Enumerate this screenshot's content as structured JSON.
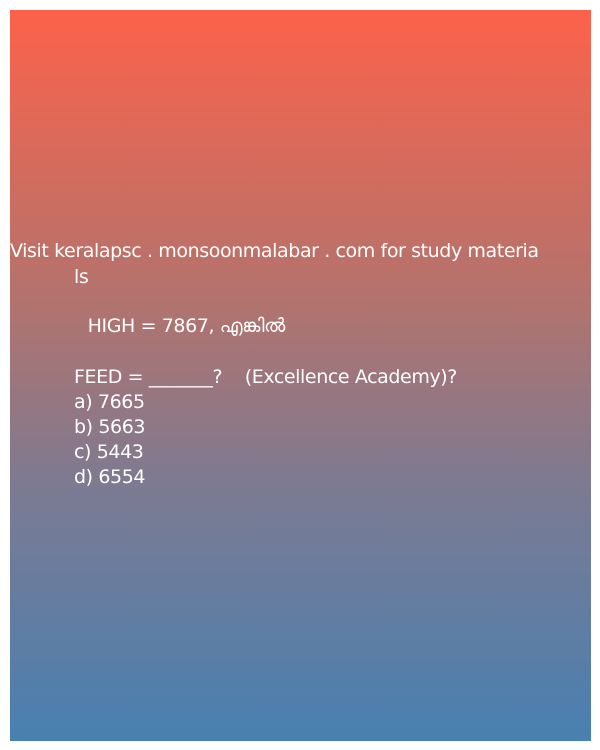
{
  "post": {
    "visit_line_1": "Visit keralapsc . monsoonmalabar . com for study materia",
    "visit_line_2": "ls",
    "given_line": " HIGH = 7867, എങ്കിൽ",
    "question_line": "FEED = _______?    (Excellence Academy)?",
    "options": [
      "a) 7665",
      "b) 5663",
      "c) 5443",
      "d) 6554"
    ]
  },
  "colors": {
    "gradient_top": "#fc624a",
    "gradient_bottom": "#4880b1",
    "text": "#ffffff"
  }
}
